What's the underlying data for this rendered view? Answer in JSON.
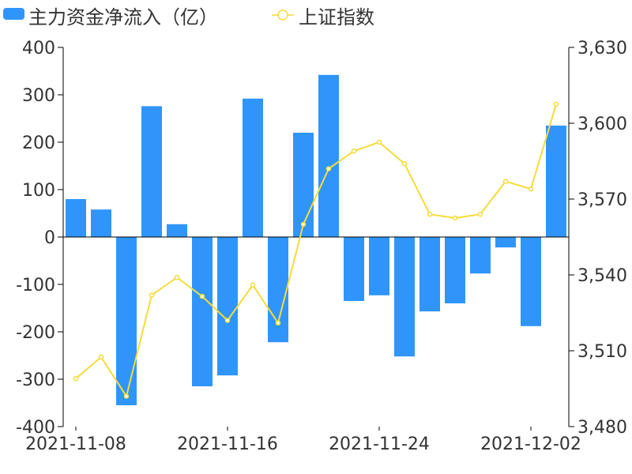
{
  "legend": {
    "bar_label": "主力资金净流入（亿）",
    "line_label": "上证指数"
  },
  "colors": {
    "bar": "#2f95fb",
    "line": "#f5dc3a",
    "axis": "#000000"
  },
  "chart_data": {
    "type": "bar+line",
    "x": [
      "2021-11-08",
      "2021-11-09",
      "2021-11-10",
      "2021-11-11",
      "2021-11-12",
      "2021-11-15",
      "2021-11-16",
      "2021-11-17",
      "2021-11-18",
      "2021-11-19",
      "2021-11-22",
      "2021-11-23",
      "2021-11-24",
      "2021-11-25",
      "2021-11-26",
      "2021-11-29",
      "2021-11-30",
      "2021-12-01",
      "2021-12-02",
      "2021-12-03"
    ],
    "x_tick_labels": [
      "2021-11-08",
      "2021-11-16",
      "2021-11-24",
      "2021-12-02"
    ],
    "x_tick_indices": [
      0,
      6,
      12,
      18
    ],
    "series": [
      {
        "name": "主力资金净流入（亿）",
        "type": "bar",
        "axis": "left",
        "values": [
          80,
          58,
          -355,
          276,
          27,
          -315,
          -292,
          292,
          -222,
          220,
          342,
          -135,
          -123,
          -252,
          -157,
          -140,
          -77,
          -22,
          -188,
          235
        ]
      },
      {
        "name": "上证指数",
        "type": "line",
        "axis": "right",
        "values": [
          3499,
          3507.5,
          3492,
          3532,
          3539,
          3531.5,
          3522,
          3536,
          3521,
          3560,
          3582,
          3589,
          3592.5,
          3584,
          3564,
          3562.5,
          3564,
          3577,
          3574,
          3607.5
        ]
      }
    ],
    "y_left": {
      "min": -400,
      "max": 400,
      "ticks": [
        400,
        300,
        200,
        100,
        0,
        -100,
        -200,
        -300,
        -400
      ],
      "tick_labels": [
        "400",
        "300",
        "200",
        "100",
        "0",
        "-100",
        "-200",
        "-300",
        "-400"
      ]
    },
    "y_right": {
      "min": 3480,
      "max": 3630,
      "ticks": [
        3630,
        3600,
        3570,
        3540,
        3510,
        3480
      ],
      "tick_labels": [
        "3,630",
        "3,600",
        "3,570",
        "3,540",
        "3,510",
        "3,480"
      ]
    },
    "legend_position": "top-left",
    "grid": false
  }
}
